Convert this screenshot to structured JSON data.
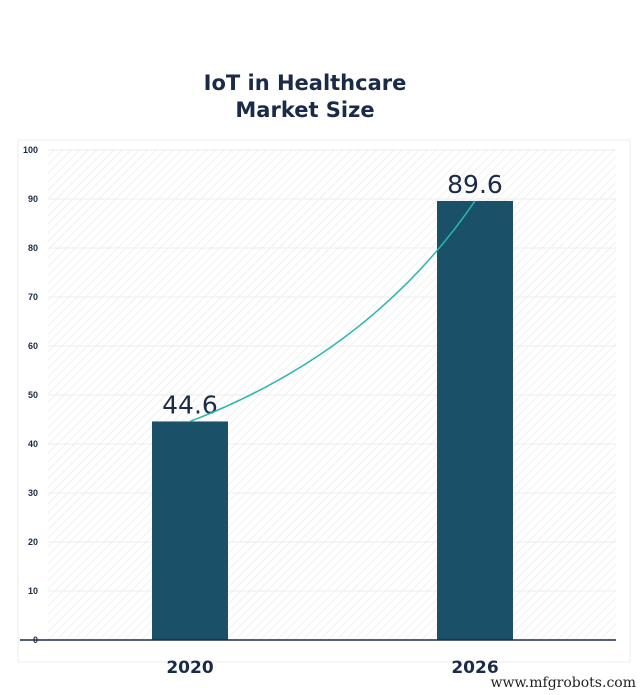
{
  "chart_data": {
    "type": "bar",
    "title_lines": [
      "IoT in Healthcare",
      "Market Size"
    ],
    "categories": [
      "2020",
      "2026"
    ],
    "values": [
      44.6,
      89.6
    ],
    "data_labels": [
      "44.6",
      "89.6"
    ],
    "ylim": [
      0,
      100
    ],
    "yticks": [
      0,
      10,
      20,
      30,
      40,
      50,
      60,
      70,
      80,
      90,
      100
    ],
    "grid": true,
    "trend_line": true,
    "colors": {
      "bar": "#1a5068",
      "trend": "#2bb5b0",
      "text": "#1b2a48"
    }
  },
  "watermark": "www.mfgrobots.com"
}
